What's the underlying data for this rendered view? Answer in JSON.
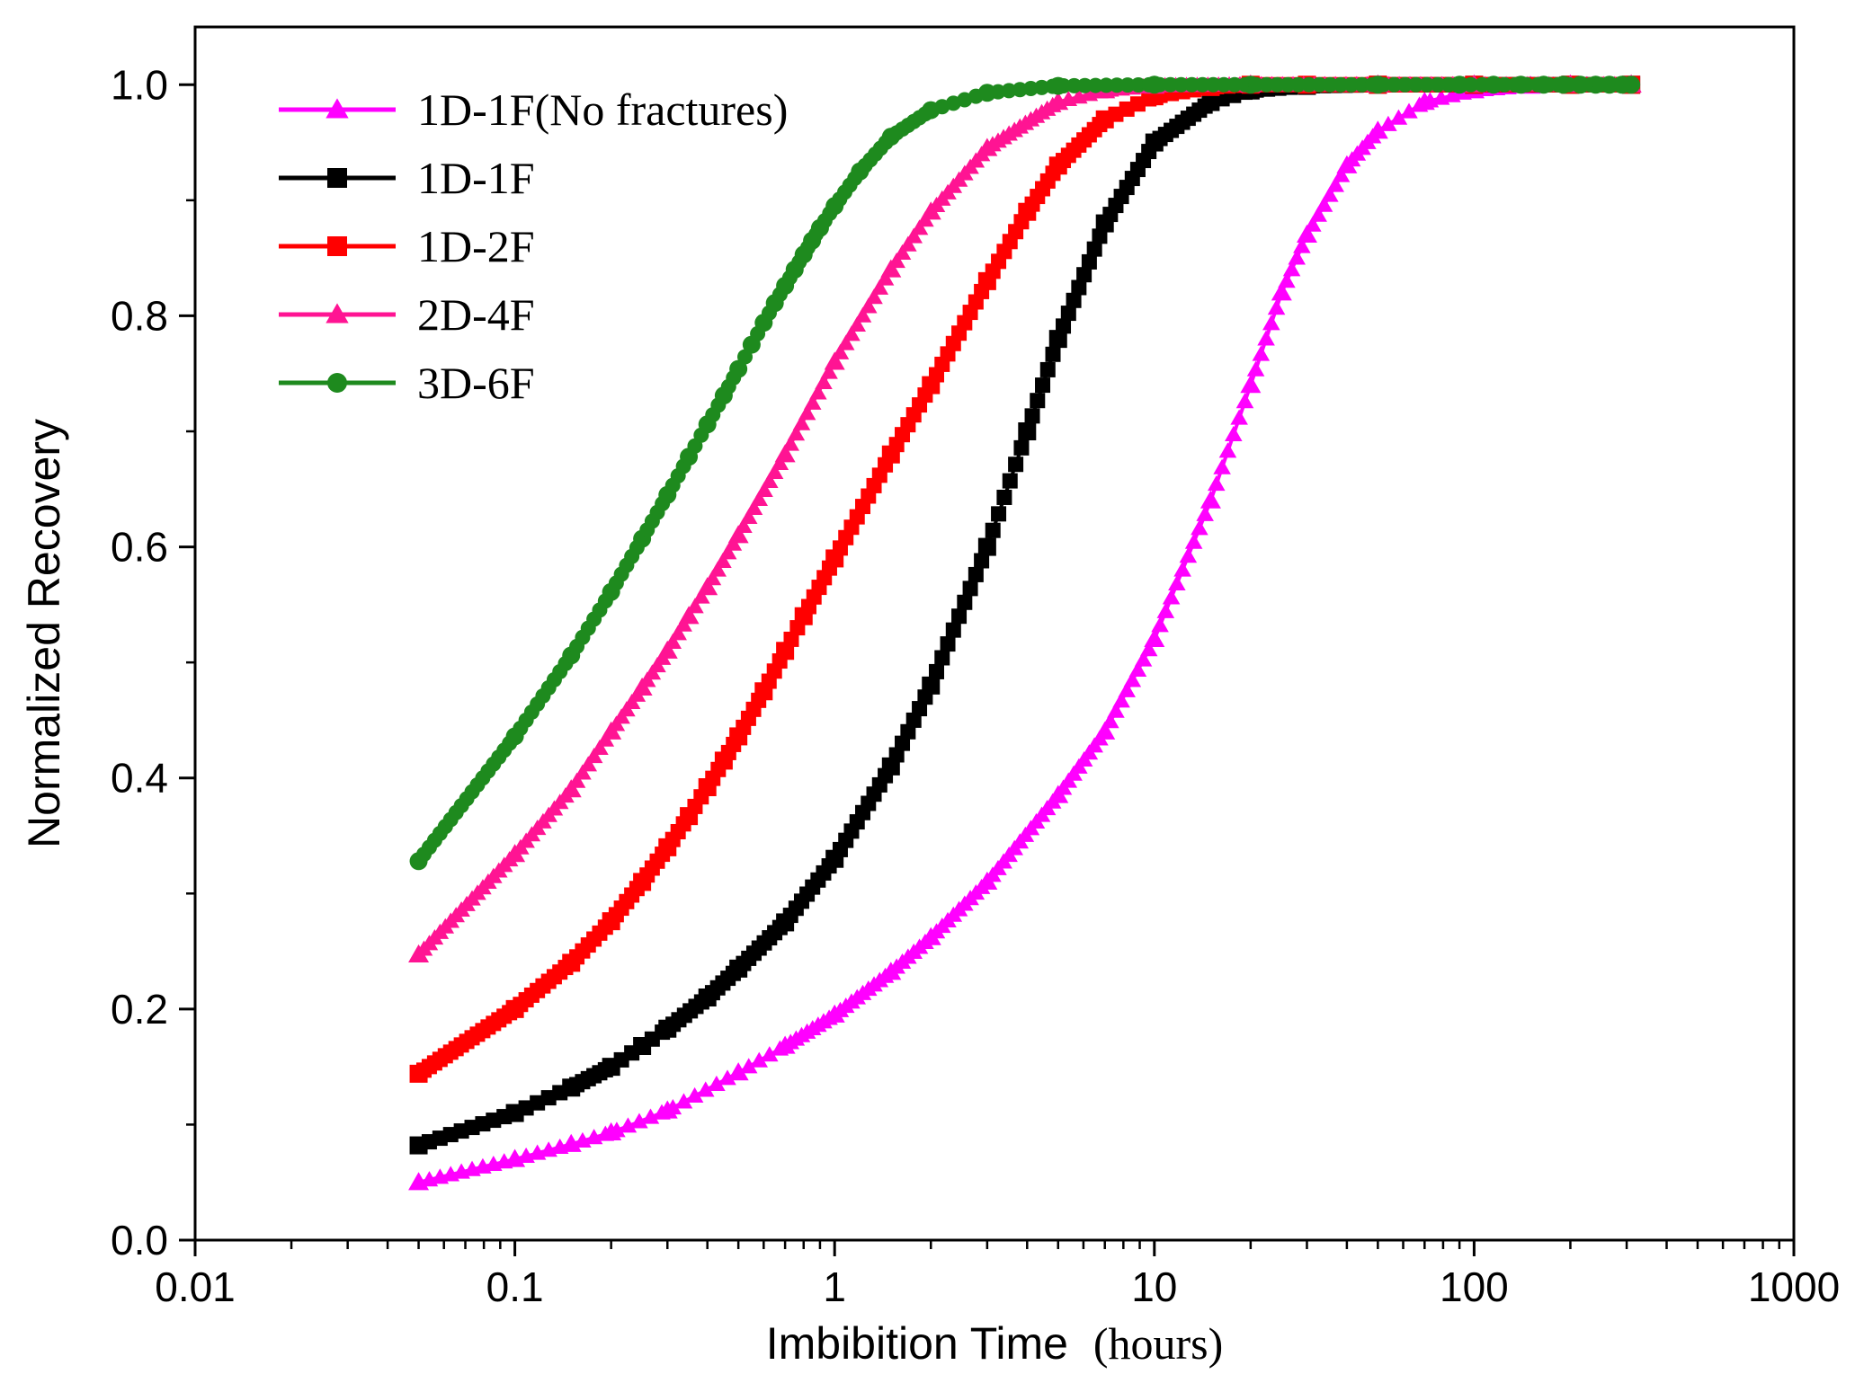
{
  "chart_data": {
    "type": "line",
    "title": "",
    "xlabel": "Imbibition Time",
    "xlabel_unit": "(hours)",
    "ylabel": "Normalized Recovery",
    "xscale": "log",
    "xlim": [
      0.01,
      1000
    ],
    "ylim": [
      0.0,
      1.05
    ],
    "xticks": [
      0.01,
      0.1,
      1,
      10,
      100,
      1000
    ],
    "xtick_labels": [
      "0.01",
      "0.1",
      "1",
      "10",
      "100",
      "1000"
    ],
    "yticks": [
      0.0,
      0.2,
      0.4,
      0.6,
      0.8,
      1.0
    ],
    "ytick_labels": [
      "0.0",
      "0.2",
      "0.4",
      "0.6",
      "0.8",
      "1.0"
    ],
    "grid": false,
    "legend_position": "top-left",
    "series": [
      {
        "name": "1D-1F(No fractures)",
        "color": "#ff00ff",
        "marker": "triangle",
        "x": [
          0.05,
          0.1,
          0.15,
          0.2,
          0.3,
          0.5,
          0.7,
          1,
          1.5,
          2,
          3,
          5,
          7,
          10,
          15,
          20,
          25,
          30,
          40,
          50,
          70,
          100,
          150,
          200,
          310
        ],
        "y": [
          0.05,
          0.07,
          0.083,
          0.093,
          0.112,
          0.145,
          0.168,
          0.195,
          0.232,
          0.262,
          0.31,
          0.385,
          0.44,
          0.52,
          0.64,
          0.74,
          0.82,
          0.87,
          0.93,
          0.96,
          0.985,
          0.995,
          0.999,
          1.0,
          1.0
        ]
      },
      {
        "name": "1D-1F",
        "color": "#000000",
        "marker": "square",
        "x": [
          0.05,
          0.1,
          0.15,
          0.2,
          0.25,
          0.3,
          0.4,
          0.5,
          0.7,
          1,
          1.5,
          2,
          3,
          4,
          5,
          7,
          10,
          15,
          20,
          30,
          50,
          100,
          200,
          310
        ],
        "y": [
          0.082,
          0.11,
          0.132,
          0.15,
          0.168,
          0.183,
          0.21,
          0.235,
          0.275,
          0.33,
          0.41,
          0.48,
          0.6,
          0.7,
          0.78,
          0.88,
          0.95,
          0.985,
          0.995,
          0.999,
          1.0,
          1.0,
          1.0,
          1.0
        ]
      },
      {
        "name": "1D-2F",
        "color": "#ff0000",
        "marker": "square",
        "x": [
          0.05,
          0.1,
          0.15,
          0.2,
          0.25,
          0.3,
          0.35,
          0.4,
          0.45,
          0.5,
          0.6,
          0.7,
          0.8,
          1,
          1.5,
          2,
          3,
          4,
          5,
          7,
          10,
          15,
          20,
          30,
          50,
          100,
          200,
          310
        ],
        "y": [
          0.144,
          0.2,
          0.24,
          0.276,
          0.31,
          0.34,
          0.367,
          0.392,
          0.415,
          0.436,
          0.475,
          0.51,
          0.54,
          0.59,
          0.68,
          0.74,
          0.83,
          0.89,
          0.93,
          0.97,
          0.99,
          0.998,
          1.0,
          1.0,
          1.0,
          1.0,
          1.0,
          1.0
        ]
      },
      {
        "name": "2D-4F",
        "color": "#ff1493",
        "marker": "triangle",
        "x": [
          0.05,
          0.1,
          0.15,
          0.2,
          0.25,
          0.3,
          0.35,
          0.4,
          0.5,
          0.7,
          1,
          1.5,
          2,
          3,
          5,
          7,
          10,
          20,
          50,
          100,
          200,
          310
        ],
        "y": [
          0.247,
          0.334,
          0.39,
          0.44,
          0.478,
          0.51,
          0.54,
          0.565,
          0.61,
          0.68,
          0.76,
          0.84,
          0.89,
          0.945,
          0.985,
          0.995,
          0.999,
          1.0,
          1.0,
          1.0,
          1.0,
          1.0
        ]
      },
      {
        "name": "3D-6F",
        "color": "#1e8a1e",
        "marker": "circle",
        "x": [
          0.05,
          0.1,
          0.15,
          0.2,
          0.25,
          0.3,
          0.35,
          0.4,
          0.45,
          0.5,
          0.55,
          0.6,
          0.65,
          0.7,
          0.75,
          0.8,
          0.85,
          0.9,
          1,
          1.2,
          1.5,
          2,
          3,
          5,
          10,
          20,
          50,
          90,
          115,
          140,
          165,
          190,
          215,
          240,
          265,
          290,
          310
        ],
        "y": [
          0.328,
          0.436,
          0.506,
          0.561,
          0.607,
          0.645,
          0.678,
          0.706,
          0.731,
          0.754,
          0.775,
          0.794,
          0.811,
          0.826,
          0.84,
          0.853,
          0.865,
          0.876,
          0.895,
          0.925,
          0.955,
          0.978,
          0.993,
          0.999,
          1.0,
          1.0,
          1.0,
          1.0,
          1.0,
          1.0,
          1.0,
          1.0,
          1.0,
          1.0,
          1.0,
          1.0,
          1.0
        ]
      }
    ]
  }
}
